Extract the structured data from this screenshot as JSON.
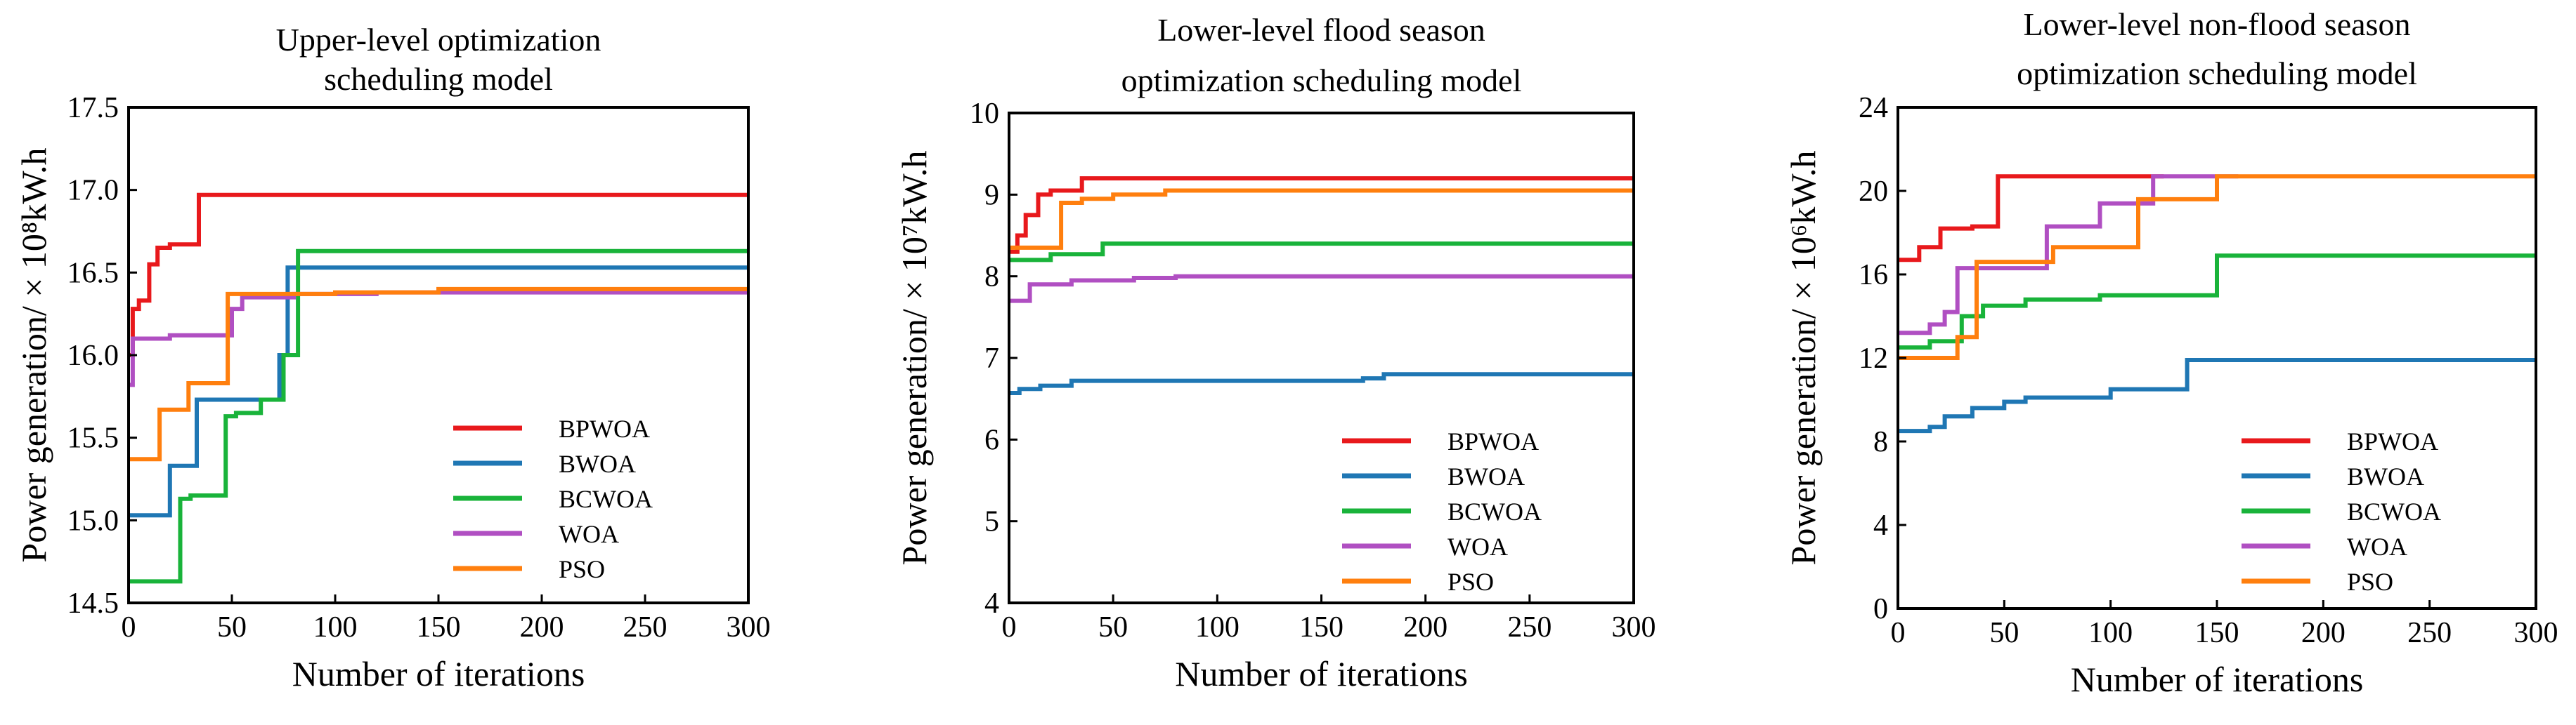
{
  "colors": {
    "BPWOA": "#e8191c",
    "BWOA": "#1f77b4",
    "BCWOA": "#19b33a",
    "WOA": "#b04fc2",
    "PSO": "#ff7f0e"
  },
  "chart_data": [
    {
      "type": "line",
      "title_lines": [
        "Upper-level optimization",
        "scheduling model"
      ],
      "xlabel": "Number of iterations",
      "ylabel": "Power generation/ × 10⁸kW.h",
      "xlim": [
        0,
        300
      ],
      "ylim": [
        14.5,
        17.5
      ],
      "xticks": [
        0,
        50,
        100,
        150,
        200,
        250,
        300
      ],
      "yticks": [
        14.5,
        15.0,
        15.5,
        16.0,
        16.5,
        17.0,
        17.5
      ],
      "ytick_labels": [
        "14.5",
        "15.0",
        "15.5",
        "16.0",
        "16.5",
        "17.0",
        "17.5"
      ],
      "legend_position": "lower-right",
      "series": [
        {
          "name": "BPWOA",
          "x": [
            0,
            2,
            2,
            5,
            5,
            10,
            10,
            14,
            14,
            20,
            20,
            34,
            34,
            300
          ],
          "y": [
            16.0,
            16.0,
            16.28,
            16.28,
            16.33,
            16.33,
            16.55,
            16.55,
            16.65,
            16.65,
            16.67,
            16.67,
            16.97,
            16.97
          ]
        },
        {
          "name": "BWOA",
          "x": [
            0,
            20,
            20,
            33,
            33,
            73,
            73,
            77,
            77,
            300
          ],
          "y": [
            15.03,
            15.03,
            15.33,
            15.33,
            15.73,
            15.73,
            16.0,
            16.0,
            16.53,
            16.53
          ]
        },
        {
          "name": "BCWOA",
          "x": [
            0,
            25,
            25,
            30,
            30,
            47,
            47,
            52,
            52,
            64,
            64,
            75,
            75,
            82,
            82,
            300
          ],
          "y": [
            14.63,
            14.63,
            15.13,
            15.13,
            15.15,
            15.15,
            15.63,
            15.63,
            15.65,
            15.65,
            15.73,
            15.73,
            16.0,
            16.0,
            16.63,
            16.63
          ]
        },
        {
          "name": "WOA",
          "x": [
            0,
            2,
            2,
            10,
            10,
            20,
            20,
            50,
            50,
            55,
            55,
            80,
            80,
            120,
            120,
            300
          ],
          "y": [
            15.82,
            15.82,
            16.1,
            16.1,
            16.1,
            16.1,
            16.12,
            16.12,
            16.28,
            16.28,
            16.35,
            16.35,
            16.37,
            16.37,
            16.38,
            16.38
          ]
        },
        {
          "name": "PSO",
          "x": [
            0,
            15,
            15,
            29,
            29,
            48,
            48,
            100,
            100,
            150,
            150,
            300
          ],
          "y": [
            15.37,
            15.37,
            15.67,
            15.67,
            15.83,
            15.83,
            16.37,
            16.37,
            16.38,
            16.38,
            16.4,
            16.4
          ]
        }
      ]
    },
    {
      "type": "line",
      "title_lines": [
        "Lower-level flood season",
        "optimization scheduling model"
      ],
      "xlabel": "Number of iterations",
      "ylabel": "Power generation/ × 10⁷kW.h",
      "xlim": [
        0,
        300
      ],
      "ylim": [
        4,
        10
      ],
      "xticks": [
        0,
        50,
        100,
        150,
        200,
        250,
        300
      ],
      "yticks": [
        4,
        5,
        6,
        7,
        8,
        9,
        10
      ],
      "ytick_labels": [
        "4",
        "5",
        "6",
        "7",
        "8",
        "9",
        "10"
      ],
      "legend_position": "lower-right",
      "series": [
        {
          "name": "BPWOA",
          "x": [
            0,
            4,
            4,
            8,
            8,
            14,
            14,
            20,
            20,
            35,
            35,
            300
          ],
          "y": [
            8.3,
            8.3,
            8.5,
            8.5,
            8.75,
            8.75,
            9.0,
            9.0,
            9.05,
            9.05,
            9.2,
            9.2
          ]
        },
        {
          "name": "BWOA",
          "x": [
            0,
            5,
            5,
            15,
            15,
            30,
            30,
            170,
            170,
            180,
            180,
            300
          ],
          "y": [
            6.57,
            6.57,
            6.62,
            6.62,
            6.66,
            6.66,
            6.72,
            6.72,
            6.75,
            6.75,
            6.8,
            6.8
          ]
        },
        {
          "name": "BCWOA",
          "x": [
            0,
            20,
            20,
            45,
            45,
            300
          ],
          "y": [
            8.2,
            8.2,
            8.27,
            8.27,
            8.4,
            8.4
          ]
        },
        {
          "name": "WOA",
          "x": [
            0,
            10,
            10,
            30,
            30,
            60,
            60,
            80,
            80,
            300
          ],
          "y": [
            7.7,
            7.7,
            7.9,
            7.9,
            7.95,
            7.95,
            7.98,
            7.98,
            8.0,
            8.0
          ]
        },
        {
          "name": "PSO",
          "x": [
            0,
            25,
            25,
            35,
            35,
            50,
            50,
            75,
            75,
            300
          ],
          "y": [
            8.35,
            8.35,
            8.9,
            8.9,
            8.95,
            8.95,
            9.0,
            9.0,
            9.05,
            9.05
          ]
        }
      ]
    },
    {
      "type": "line",
      "title_lines": [
        "Lower-level non-flood season",
        "optimization scheduling model"
      ],
      "xlabel": "Number of iterations",
      "ylabel": "Power generation/ × 10⁶kW.h",
      "xlim": [
        0,
        300
      ],
      "ylim": [
        0,
        24
      ],
      "xticks": [
        0,
        50,
        100,
        150,
        200,
        250,
        300
      ],
      "yticks": [
        0,
        4,
        8,
        12,
        16,
        20,
        24
      ],
      "ytick_labels": [
        "0",
        "4",
        "8",
        "12",
        "16",
        "20",
        "24"
      ],
      "legend_position": "lower-right",
      "series": [
        {
          "name": "BPWOA",
          "x": [
            0,
            10,
            10,
            20,
            20,
            35,
            35,
            47,
            47,
            125
          ],
          "y": [
            16.7,
            16.7,
            17.3,
            17.3,
            18.2,
            18.2,
            18.3,
            18.3,
            20.7,
            20.7
          ]
        },
        {
          "name": "BWOA",
          "x": [
            0,
            15,
            15,
            22,
            22,
            35,
            35,
            50,
            50,
            60,
            60,
            100,
            100,
            136,
            136,
            300
          ],
          "y": [
            8.5,
            8.5,
            8.7,
            8.7,
            9.2,
            9.2,
            9.6,
            9.6,
            9.9,
            9.9,
            10.1,
            10.1,
            10.5,
            10.5,
            11.9,
            11.9
          ]
        },
        {
          "name": "BCWOA",
          "x": [
            0,
            15,
            15,
            30,
            30,
            40,
            40,
            60,
            60,
            95,
            95,
            150,
            150,
            300
          ],
          "y": [
            12.5,
            12.5,
            12.8,
            12.8,
            14.0,
            14.0,
            14.5,
            14.5,
            14.8,
            14.8,
            15.0,
            15.0,
            16.9,
            16.9
          ]
        },
        {
          "name": "WOA",
          "x": [
            0,
            15,
            15,
            22,
            22,
            28,
            28,
            70,
            70,
            95,
            95,
            120,
            120,
            160
          ],
          "y": [
            13.2,
            13.2,
            13.6,
            13.6,
            14.2,
            14.2,
            16.3,
            16.3,
            18.3,
            18.3,
            19.4,
            19.4,
            20.7,
            20.7
          ]
        },
        {
          "name": "PSO",
          "x": [
            0,
            28,
            28,
            37,
            37,
            73,
            73,
            113,
            113,
            150,
            150,
            300
          ],
          "y": [
            12.0,
            12.0,
            13.0,
            13.0,
            16.6,
            16.6,
            17.3,
            17.3,
            19.6,
            19.6,
            20.7,
            20.7
          ]
        }
      ]
    }
  ]
}
